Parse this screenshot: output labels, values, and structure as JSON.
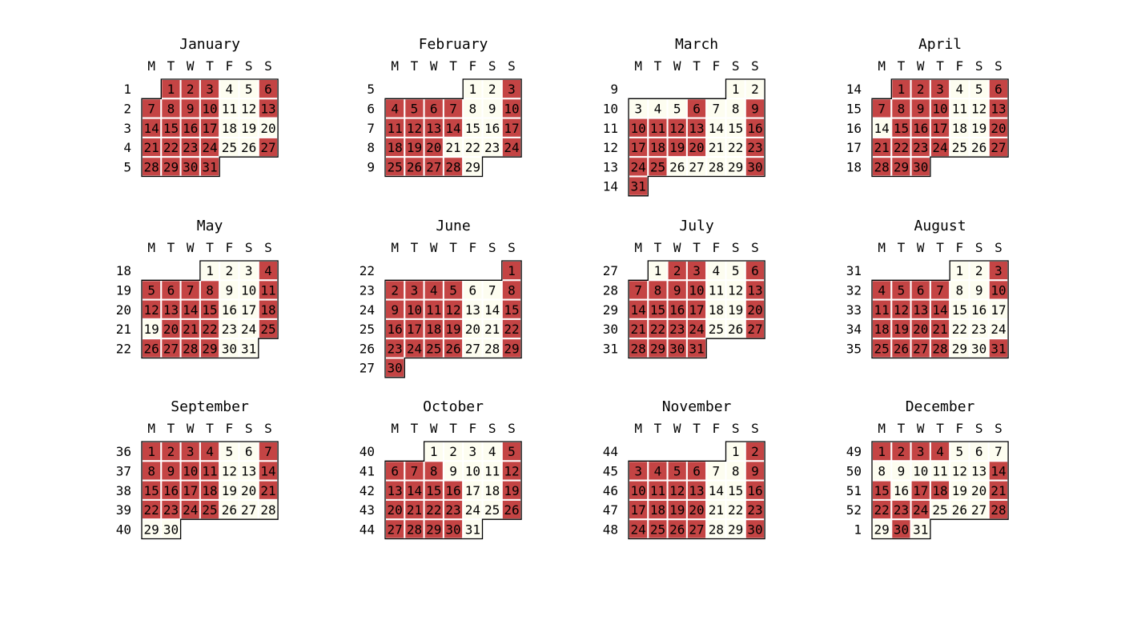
{
  "chart_data": {
    "type": "heatmap",
    "colors": {
      "highlight": "#c44444",
      "normal": "#fdfdf0",
      "outline": "#000000",
      "grid": "#ffffff"
    },
    "weekday_labels": [
      "M",
      "T",
      "W",
      "T",
      "F",
      "S",
      "S"
    ],
    "months": [
      {
        "name": "January",
        "start_weekday": 1,
        "days": 31,
        "week_numbers": [
          "1",
          "2",
          "3",
          "4",
          "5"
        ],
        "highlighted": [
          1,
          2,
          3,
          6,
          7,
          8,
          9,
          10,
          13,
          14,
          15,
          16,
          17,
          21,
          22,
          23,
          24,
          27,
          28,
          29,
          30,
          31
        ]
      },
      {
        "name": "February",
        "start_weekday": 4,
        "days": 29,
        "week_numbers": [
          "5",
          "6",
          "7",
          "8",
          "9"
        ],
        "highlighted": [
          3,
          4,
          5,
          6,
          7,
          10,
          11,
          12,
          13,
          14,
          17,
          18,
          19,
          20,
          24,
          25,
          26,
          27,
          28
        ]
      },
      {
        "name": "March",
        "start_weekday": 5,
        "days": 31,
        "week_numbers": [
          "9",
          "10",
          "11",
          "12",
          "13",
          "14"
        ],
        "highlighted": [
          6,
          9,
          10,
          11,
          12,
          13,
          16,
          17,
          18,
          19,
          20,
          23,
          24,
          25,
          30,
          31
        ]
      },
      {
        "name": "April",
        "start_weekday": 1,
        "days": 30,
        "week_numbers": [
          "14",
          "15",
          "16",
          "17",
          "18"
        ],
        "highlighted": [
          1,
          2,
          3,
          6,
          7,
          8,
          9,
          10,
          13,
          15,
          16,
          17,
          20,
          21,
          22,
          23,
          24,
          27,
          28,
          29,
          30
        ]
      },
      {
        "name": "May",
        "start_weekday": 3,
        "days": 31,
        "week_numbers": [
          "18",
          "19",
          "20",
          "21",
          "22"
        ],
        "highlighted": [
          4,
          5,
          6,
          7,
          8,
          11,
          12,
          13,
          14,
          15,
          18,
          20,
          21,
          22,
          25,
          26,
          27,
          28,
          29
        ]
      },
      {
        "name": "June",
        "start_weekday": 6,
        "days": 30,
        "week_numbers": [
          "22",
          "23",
          "24",
          "25",
          "26",
          "27"
        ],
        "highlighted": [
          1,
          2,
          3,
          4,
          5,
          8,
          9,
          10,
          11,
          12,
          15,
          16,
          17,
          18,
          19,
          22,
          23,
          24,
          25,
          26,
          29,
          30
        ]
      },
      {
        "name": "July",
        "start_weekday": 1,
        "days": 31,
        "week_numbers": [
          "27",
          "28",
          "29",
          "30",
          "31"
        ],
        "highlighted": [
          2,
          3,
          6,
          7,
          8,
          9,
          10,
          13,
          14,
          15,
          16,
          17,
          20,
          21,
          22,
          23,
          24,
          27,
          28,
          29,
          30,
          31
        ]
      },
      {
        "name": "August",
        "start_weekday": 4,
        "days": 31,
        "week_numbers": [
          "31",
          "32",
          "33",
          "34",
          "35"
        ],
        "highlighted": [
          3,
          4,
          5,
          6,
          7,
          10,
          11,
          12,
          13,
          14,
          18,
          19,
          20,
          21,
          25,
          26,
          27,
          28,
          31
        ]
      },
      {
        "name": "September",
        "start_weekday": 0,
        "days": 30,
        "week_numbers": [
          "36",
          "37",
          "38",
          "39",
          "40"
        ],
        "highlighted": [
          1,
          2,
          3,
          4,
          7,
          8,
          9,
          10,
          11,
          14,
          15,
          16,
          17,
          18,
          21,
          22,
          23,
          24,
          25
        ]
      },
      {
        "name": "October",
        "start_weekday": 2,
        "days": 31,
        "week_numbers": [
          "40",
          "41",
          "42",
          "43",
          "44"
        ],
        "highlighted": [
          5,
          6,
          7,
          8,
          12,
          13,
          14,
          15,
          16,
          19,
          20,
          21,
          22,
          23,
          26,
          27,
          28,
          29,
          30
        ]
      },
      {
        "name": "November",
        "start_weekday": 5,
        "days": 30,
        "week_numbers": [
          "44",
          "45",
          "46",
          "47",
          "48"
        ],
        "highlighted": [
          2,
          3,
          4,
          5,
          6,
          9,
          10,
          11,
          12,
          13,
          16,
          17,
          18,
          19,
          20,
          23,
          24,
          25,
          26,
          27,
          30
        ]
      },
      {
        "name": "December",
        "start_weekday": 0,
        "days": 31,
        "week_numbers": [
          "49",
          "50",
          "51",
          "52",
          "1"
        ],
        "highlighted": [
          1,
          2,
          3,
          4,
          14,
          15,
          17,
          18,
          21,
          22,
          23,
          24,
          28,
          30
        ]
      }
    ]
  }
}
